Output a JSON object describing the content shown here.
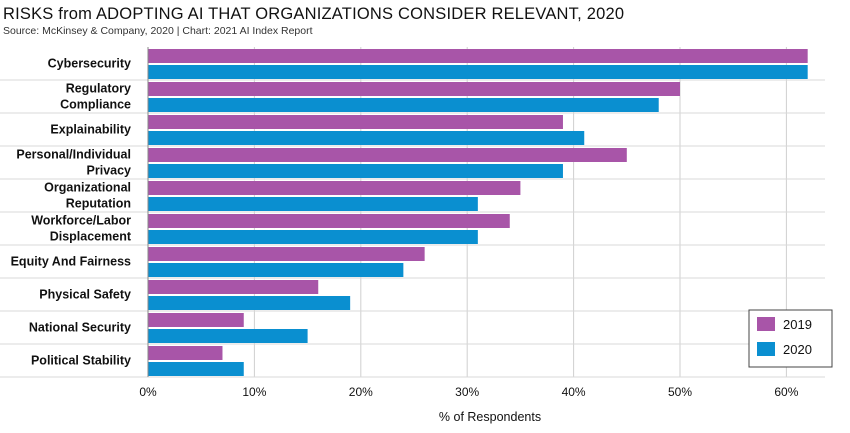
{
  "chart_data": {
    "type": "bar",
    "orientation": "horizontal",
    "title": "RISKS from ADOPTING AI THAT ORGANIZATIONS CONSIDER RELEVANT, 2020",
    "subtitle": "Source: McKinsey & Company, 2020 | Chart: 2021 AI Index Report",
    "xlabel": "% of Respondents",
    "ylabel": "",
    "xlim": [
      0,
      63
    ],
    "x_ticks": [
      "0%",
      "10%",
      "20%",
      "30%",
      "40%",
      "50%",
      "60%"
    ],
    "x_tick_values": [
      0,
      10,
      20,
      30,
      40,
      50,
      60
    ],
    "grid": true,
    "legend_position": "bottom-right",
    "categories": [
      [
        "Cybersecurity"
      ],
      [
        "Regulatory",
        "Compliance"
      ],
      [
        "Explainability"
      ],
      [
        "Personal/Individual",
        "Privacy"
      ],
      [
        "Organizational",
        "Reputation"
      ],
      [
        "Workforce/Labor",
        "Displacement"
      ],
      [
        "Equity And Fairness"
      ],
      [
        "Physical Safety"
      ],
      [
        "National Security"
      ],
      [
        "Political Stability"
      ]
    ],
    "series": [
      {
        "name": "2019",
        "color": "#a855a8",
        "values": [
          62,
          50,
          39,
          45,
          35,
          34,
          26,
          16,
          9,
          7
        ]
      },
      {
        "name": "2020",
        "color": "#0a8fd0",
        "values": [
          62,
          48,
          41,
          39,
          31,
          31,
          24,
          19,
          15,
          9
        ]
      }
    ]
  }
}
